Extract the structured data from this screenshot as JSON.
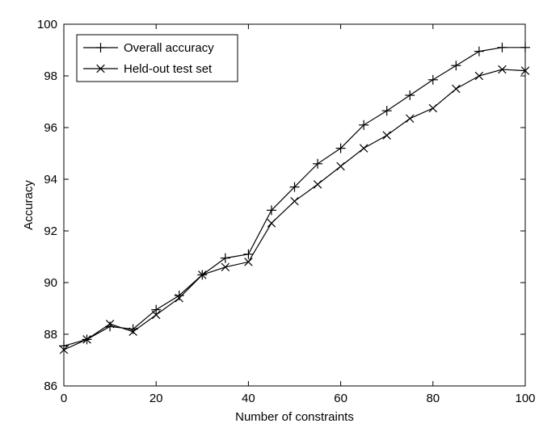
{
  "chart_data": {
    "type": "line",
    "title": "",
    "xlabel": "Number of constraints",
    "ylabel": "Accuracy",
    "xlim": [
      0,
      100
    ],
    "ylim": [
      86,
      100
    ],
    "xticks": [
      0,
      20,
      40,
      60,
      80,
      100
    ],
    "yticks": [
      86,
      88,
      90,
      92,
      94,
      96,
      98,
      100
    ],
    "grid": false,
    "legend_position": "top-left",
    "x": [
      0,
      5,
      10,
      15,
      20,
      25,
      30,
      35,
      40,
      45,
      50,
      55,
      60,
      65,
      70,
      75,
      80,
      85,
      90,
      95,
      100
    ],
    "series": [
      {
        "name": "Overall accuracy",
        "marker": "plus",
        "color": "#000000",
        "values": [
          87.55,
          87.8,
          88.3,
          88.2,
          88.95,
          89.5,
          90.3,
          90.95,
          91.1,
          92.8,
          93.7,
          94.6,
          95.2,
          96.1,
          96.65,
          97.25,
          97.85,
          98.4,
          98.95,
          99.1,
          99.1
        ]
      },
      {
        "name": "Held-out test set",
        "marker": "x",
        "color": "#000000",
        "values": [
          87.4,
          87.8,
          88.4,
          88.1,
          88.75,
          89.4,
          90.3,
          90.6,
          90.8,
          92.3,
          93.15,
          93.8,
          94.5,
          95.2,
          95.7,
          96.35,
          96.75,
          97.5,
          98.0,
          98.25,
          98.2
        ]
      }
    ]
  }
}
